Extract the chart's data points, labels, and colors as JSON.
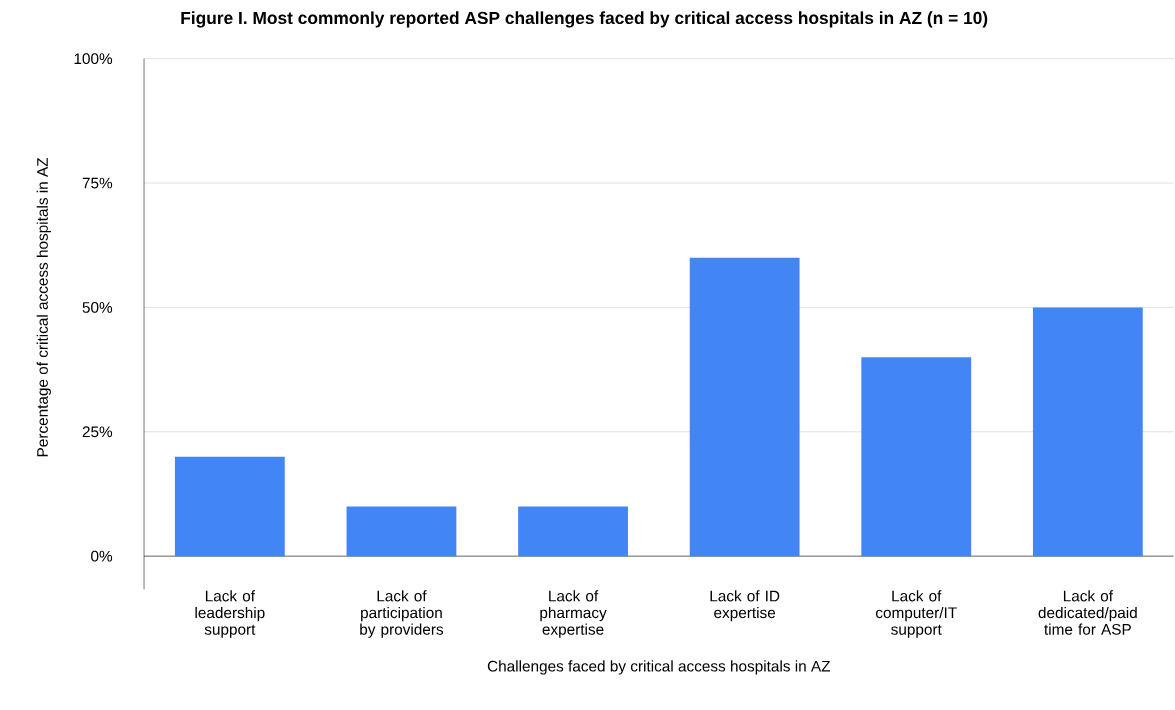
{
  "chart_data": {
    "type": "bar",
    "title": "Figure I. Most commonly reported ASP challenges faced by critical access hospitals in AZ (n = 10)",
    "xlabel": "Challenges faced by critical access hospitals in AZ",
    "ylabel": "Percentage of critical access hospitals in AZ",
    "categories": [
      "Lack of leadership support",
      "Lack of participation by providers",
      "Lack of pharmacy expertise",
      "Lack of ID expertise",
      "Lack of computer/IT support",
      "Lack of dedicated/paid time for ASP"
    ],
    "values": [
      20,
      10,
      10,
      60,
      40,
      50
    ],
    "color": "#4285f4",
    "ylim": [
      0,
      100
    ],
    "yticks": [
      {
        "value": 0,
        "label": "0%"
      },
      {
        "value": 25,
        "label": "25%"
      },
      {
        "value": 50,
        "label": "50%"
      },
      {
        "value": 75,
        "label": "75%"
      },
      {
        "value": 100,
        "label": "100%"
      }
    ],
    "grid": "y"
  }
}
